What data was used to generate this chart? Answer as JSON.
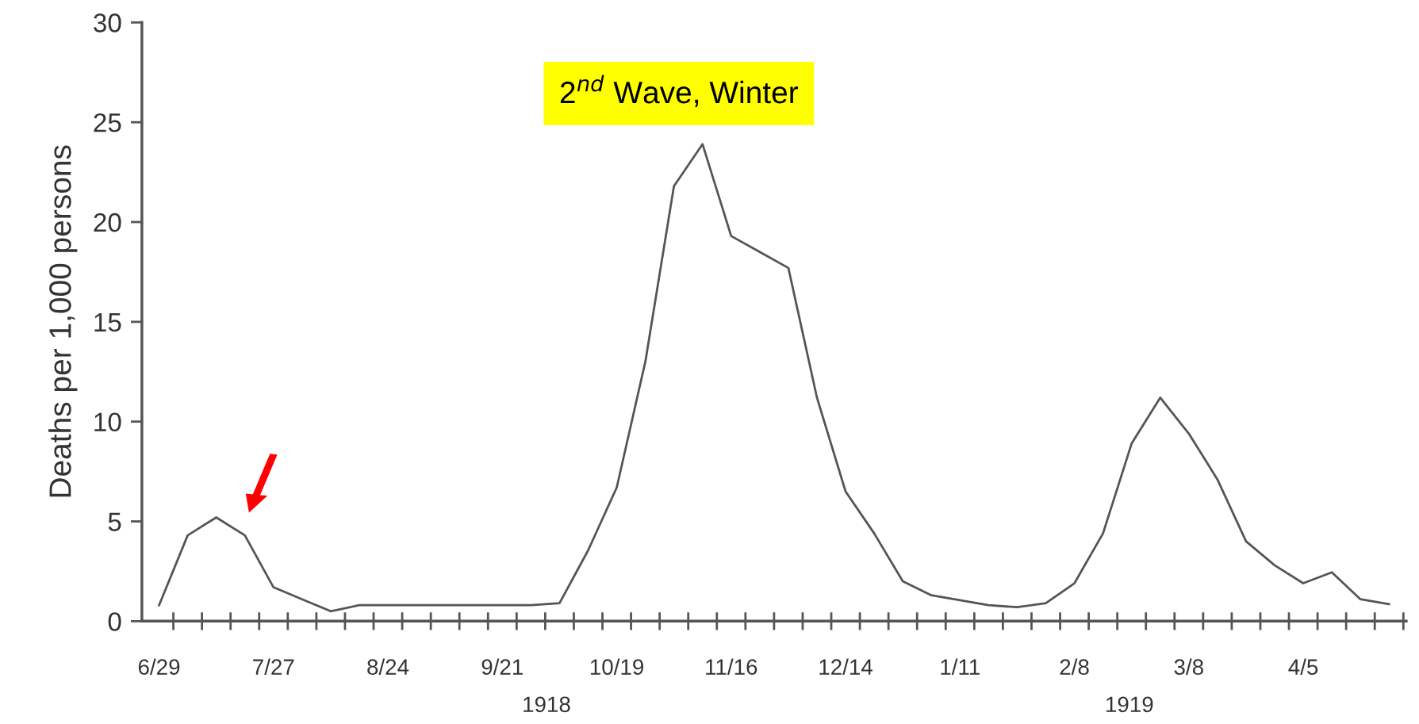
{
  "chart_data": {
    "type": "line",
    "ylabel": "Deaths per 1,000 persons",
    "categories": [
      "6/29",
      null,
      null,
      null,
      "7/27",
      null,
      null,
      null,
      "8/24",
      null,
      null,
      null,
      "9/21",
      null,
      null,
      null,
      "10/19",
      null,
      null,
      null,
      "11/16",
      null,
      null,
      null,
      "12/14",
      null,
      null,
      null,
      "1/11",
      null,
      null,
      null,
      "2/8",
      null,
      null,
      null,
      "3/8",
      null,
      null,
      null,
      "4/5",
      null,
      null,
      null
    ],
    "series": [
      {
        "color": "#555555",
        "values": [
          0.8,
          4.3,
          5.2,
          4.3,
          1.7,
          1.1,
          0.5,
          0.8,
          0.8,
          0.8,
          0.8,
          0.8,
          0.8,
          0.8,
          0.9,
          3.55,
          6.7,
          13.0,
          21.8,
          23.9,
          19.3,
          18.5,
          17.7,
          11.2,
          6.5,
          4.4,
          2.0,
          1.3,
          1.05,
          0.8,
          0.7,
          0.9,
          1.9,
          4.4,
          8.9,
          11.2,
          9.4,
          7.1,
          4.0,
          2.8,
          1.9,
          2.45,
          1.1,
          0.85
        ]
      }
    ],
    "ylim": [
      0,
      30
    ],
    "yticks": [
      0,
      5,
      10,
      15,
      20,
      25,
      30
    ],
    "grid": false,
    "legend": false,
    "marker": "none",
    "line_style": "solid",
    "annotations": [
      "2$^{nd}$ Wave, Winter",
      "1918",
      "1919"
    ]
  }
}
